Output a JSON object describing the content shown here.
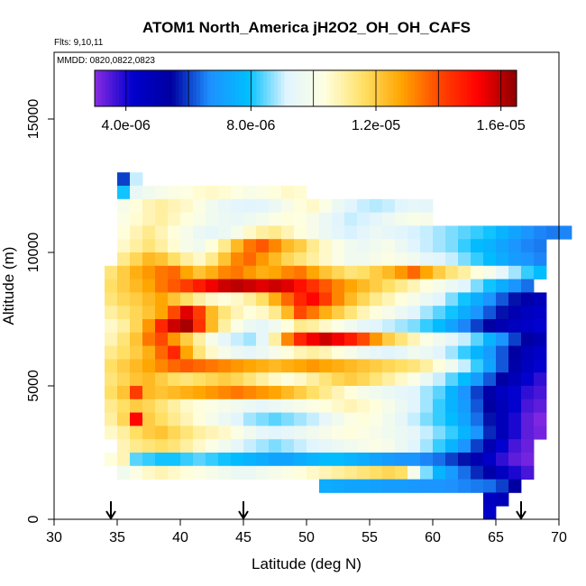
{
  "chart_data": {
    "type": "heatmap",
    "title": "ATOM1 North_America jH2O2_OH_OH_CAFS",
    "flights_label": "Flts: 9,10,11",
    "dates_label": "MMDD: 0820,0822,0823",
    "xlabel": "Latitude (deg N)",
    "ylabel": "Altitude (m)",
    "xlim": [
      30,
      70
    ],
    "ylim": [
      0,
      17500
    ],
    "x_ticks": [
      30,
      35,
      40,
      45,
      50,
      55,
      60,
      65,
      70
    ],
    "x_tick_labels": [
      "30",
      "35",
      "40",
      "45",
      "50",
      "55",
      "60",
      "65",
      "70"
    ],
    "y_ticks": [
      0,
      5000,
      10000,
      15000
    ],
    "y_tick_labels": [
      "0",
      "5000",
      "10000",
      "15000"
    ],
    "colorbar": {
      "min": 3e-06,
      "max": 1.65e-05,
      "ticks": [
        4e-06,
        8e-06,
        1.2e-05,
        1.6e-05
      ],
      "tick_labels": [
        "4.0e-06",
        "8.0e-06",
        "1.2e-05",
        "1.6e-05"
      ],
      "colors": [
        "#8a2be2",
        "#0000cd",
        "#0000a0",
        "#1e90ff",
        "#00bfff",
        "#e0f4ff",
        "#ffffe0",
        "#ffe066",
        "#ffa500",
        "#ff4500",
        "#ff0000",
        "#8b0000"
      ]
    },
    "arrows_at_latitude": [
      34.5,
      45,
      67
    ],
    "cell_size": {
      "lat": 1.0,
      "alt": 500
    },
    "rows": [
      {
        "alt": 12750,
        "lat_start": 35,
        "values": [
          6e-06,
          9e-06
        ]
      },
      {
        "alt": 12250,
        "lat_start": 35,
        "values": [
          8e-06,
          9.5e-06,
          9.8e-06,
          1e-05,
          1.02e-05,
          1.03e-05,
          1.05e-05,
          1.06e-05,
          1.05e-05,
          1.03e-05,
          1.01e-05,
          1.02e-05,
          1.04e-05,
          1.06e-05,
          1.05e-05
        ]
      },
      {
        "alt": 11750,
        "lat_start": 35,
        "values": [
          1e-05,
          1.04e-05,
          1.08e-05,
          1.1e-05,
          1.08e-05,
          1.06e-05,
          1.02e-05,
          9.8e-06,
          9.5e-06,
          9.3e-06,
          9.2e-06,
          9.3e-06,
          9.6e-06,
          1e-05,
          1.04e-05,
          1.06e-05,
          1.02e-05,
          9.6e-06,
          9.2e-06,
          9e-06,
          8.9e-06,
          9e-06,
          9.2e-06,
          9.4e-06,
          9.3e-06
        ]
      },
      {
        "alt": 11250,
        "lat_start": 35,
        "values": [
          1.02e-05,
          1.05e-05,
          1.08e-05,
          1.1e-05,
          1.07e-05,
          1.04e-05,
          1.01e-05,
          9.8e-06,
          9.6e-06,
          9.5e-06,
          9.7e-06,
          9.9e-06,
          1.02e-05,
          1.04e-05,
          1.03e-05,
          1e-05,
          9.6e-06,
          9.2e-06,
          9e-06,
          9.1e-06,
          9.3e-06,
          9.6e-06,
          9.9e-06,
          1.01e-05,
          1e-05
        ]
      },
      {
        "alt": 10750,
        "lat_start": 35,
        "values": [
          1.04e-05,
          1.08e-05,
          1.12e-05,
          1.08e-05,
          1.04e-05,
          1e-05,
          9.6e-06,
          9.4e-06,
          9.6e-06,
          1e-05,
          1.06e-05,
          1.1e-05,
          1.12e-05,
          1.08e-05,
          1.04e-05,
          1e-05,
          9.6e-06,
          9.3e-06,
          9.1e-06,
          9.3e-06,
          9.6e-06,
          9.4e-06,
          9.2e-06,
          9.1e-06,
          9e-06,
          8.8e-06,
          8.6e-06,
          8.4e-06,
          8.2e-06,
          8e-06,
          7.6e-06,
          7.2e-06,
          6.8e-06,
          6.6e-06,
          6.5e-06,
          6.6e-06
        ]
      },
      {
        "alt": 10250,
        "lat_start": 35,
        "values": [
          1.06e-05,
          1.1e-05,
          1.14e-05,
          1.1e-05,
          1.05e-05,
          1e-05,
          9.8e-06,
          1.04e-05,
          1.12e-05,
          1.24e-05,
          1.34e-05,
          1.38e-05,
          1.32e-05,
          1.24e-05,
          1.2e-05,
          1.12e-05,
          1.06e-05,
          1.02e-05,
          9.8e-06,
          9.6e-06,
          9.8e-06,
          1e-05,
          9.6e-06,
          9.2e-06,
          9e-06,
          8.8e-06,
          8.6e-06,
          8.2e-06,
          7.8e-06,
          7.6e-06,
          7.2e-06,
          6.8e-06,
          6.6e-06,
          6.5e-06
        ]
      },
      {
        "alt": 9750,
        "lat_start": 35,
        "values": [
          1.12e-05,
          1.18e-05,
          1.24e-05,
          1.22e-05,
          1.16e-05,
          1.1e-05,
          1.06e-05,
          1.12e-05,
          1.22e-05,
          1.32e-05,
          1.36e-05,
          1.3e-05,
          1.24e-05,
          1.18e-05,
          1.14e-05,
          1.1e-05,
          1.06e-05,
          1.02e-05,
          9.8e-06,
          9.8e-06,
          1e-05,
          1.02e-05,
          1e-05,
          9.8e-06,
          9.4e-06,
          9.2e-06,
          9e-06,
          8.6e-06,
          8.2e-06,
          7.8e-06,
          7.4e-06,
          7e-06,
          6.8e-06,
          6.6e-06
        ]
      },
      {
        "alt": 9250,
        "lat_start": 34,
        "values": [
          1.14e-05,
          1.2e-05,
          1.26e-05,
          1.3e-05,
          1.34e-05,
          1.36e-05,
          1.28e-05,
          1.22e-05,
          1.26e-05,
          1.32e-05,
          1.34e-05,
          1.3e-05,
          1.26e-05,
          1.28e-05,
          1.32e-05,
          1.34e-05,
          1.28e-05,
          1.22e-05,
          1.18e-05,
          1.14e-05,
          1.16e-05,
          1.2e-05,
          1.24e-05,
          1.3e-05,
          1.36e-05,
          1.28e-05,
          1.2e-05,
          1.14e-05,
          1.1e-05,
          1.04e-05,
          1e-05,
          9.4e-06,
          8.8e-06,
          8.2e-06,
          7.8e-06
        ]
      },
      {
        "alt": 8750,
        "lat_start": 34,
        "values": [
          1.16e-05,
          1.2e-05,
          1.24e-05,
          1.28e-05,
          1.34e-05,
          1.38e-05,
          1.42e-05,
          1.48e-05,
          1.54e-05,
          1.58e-05,
          1.6e-05,
          1.58e-05,
          1.56e-05,
          1.58e-05,
          1.56e-05,
          1.5e-05,
          1.44e-05,
          1.38e-05,
          1.32e-05,
          1.28e-05,
          1.24e-05,
          1.2e-05,
          1.16e-05,
          1.12e-05,
          1.08e-05,
          1.04e-05,
          1e-05,
          9.6e-06,
          9.2e-06,
          8.6e-06,
          8e-06,
          7.4e-06,
          6.8e-06,
          6.4e-06
        ]
      },
      {
        "alt": 8250,
        "lat_start": 34,
        "values": [
          1.14e-05,
          1.18e-05,
          1.2e-05,
          1.24e-05,
          1.28e-05,
          1.22e-05,
          1.16e-05,
          1.1e-05,
          1.06e-05,
          1.04e-05,
          1.06e-05,
          1.1e-05,
          1.16e-05,
          1.26e-05,
          1.36e-05,
          1.46e-05,
          1.52e-05,
          1.42e-05,
          1.32e-05,
          1.24e-05,
          1.18e-05,
          1.12e-05,
          1.08e-05,
          1.04e-05,
          1e-05,
          9.6e-06,
          9.2e-06,
          8.6e-06,
          8e-06,
          7.4e-06,
          6.8e-06,
          6.2e-06,
          5.6e-06,
          5.2e-06,
          4.8e-06
        ]
      },
      {
        "alt": 7750,
        "lat_start": 34,
        "values": [
          1.1e-05,
          1.14e-05,
          1.18e-05,
          1.22e-05,
          1.28e-05,
          1.4e-05,
          1.56e-05,
          1.42e-05,
          1.24e-05,
          1.14e-05,
          1.08e-05,
          1.04e-05,
          1.06e-05,
          1.12e-05,
          1.24e-05,
          1.4e-05,
          1.34e-05,
          1.26e-05,
          1.2e-05,
          1.14e-05,
          1.08e-05,
          1.04e-05,
          1e-05,
          9.6e-06,
          9.2e-06,
          8.8e-06,
          8.4e-06,
          8e-06,
          7.4e-06,
          6.8e-06,
          6.2e-06,
          5.6e-06,
          5e-06,
          4.6e-06,
          4.4e-06
        ]
      },
      {
        "alt": 7250,
        "lat_start": 34,
        "values": [
          1.06e-05,
          1.1e-05,
          1.18e-05,
          1.3e-05,
          1.46e-05,
          1.58e-05,
          1.62e-05,
          1.44e-05,
          1.24e-05,
          1.1e-05,
          1.02e-05,
          9.6e-06,
          9.4e-06,
          9.8e-06,
          1.04e-05,
          1.12e-05,
          1.1e-05,
          1.06e-05,
          1.02e-05,
          9.8e-06,
          9.4e-06,
          9.2e-06,
          9e-06,
          8.8e-06,
          8.6e-06,
          8.2e-06,
          7.8e-06,
          7.2e-06,
          6.6e-06,
          6e-06,
          5.4e-06,
          5e-06,
          4.6e-06,
          4.4e-06,
          4.2e-06
        ]
      },
      {
        "alt": 6750,
        "lat_start": 34,
        "values": [
          1.08e-05,
          1.14e-05,
          1.22e-05,
          1.34e-05,
          1.4e-05,
          1.3e-05,
          1.2e-05,
          1.1e-05,
          1e-05,
          9.4e-06,
          9e-06,
          8.8e-06,
          9.4e-06,
          1.1e-05,
          1.32e-05,
          1.46e-05,
          1.54e-05,
          1.58e-05,
          1.54e-05,
          1.48e-05,
          1.4e-05,
          1.3e-05,
          1.2e-05,
          1.14e-05,
          1.08e-05,
          1.02e-05,
          9.8e-06,
          9.4e-06,
          9e-06,
          8.4e-06,
          7.6e-06,
          6.8e-06,
          6e-06,
          5.4e-06,
          5e-06
        ]
      },
      {
        "alt": 6250,
        "lat_start": 34,
        "values": [
          1.12e-05,
          1.16e-05,
          1.2e-05,
          1.26e-05,
          1.36e-05,
          1.46e-05,
          1.28e-05,
          1.14e-05,
          1.06e-05,
          1e-05,
          9.6e-06,
          9.4e-06,
          9.6e-06,
          1e-05,
          1.04e-05,
          1.08e-05,
          1.1e-05,
          1.08e-05,
          1.04e-05,
          1e-05,
          9.6e-06,
          9.4e-06,
          9.2e-06,
          9.4e-06,
          9.8e-06,
          9.6e-06,
          9.2e-06,
          8.8e-06,
          8.2e-06,
          7.6e-06,
          7e-06,
          6.2e-06,
          5.4e-06,
          4.8e-06,
          4.4e-06
        ]
      },
      {
        "alt": 5750,
        "lat_start": 34,
        "values": [
          1.16e-05,
          1.2e-05,
          1.24e-05,
          1.28e-05,
          1.32e-05,
          1.36e-05,
          1.38e-05,
          1.36e-05,
          1.34e-05,
          1.32e-05,
          1.3e-05,
          1.28e-05,
          1.26e-05,
          1.24e-05,
          1.26e-05,
          1.28e-05,
          1.3e-05,
          1.28e-05,
          1.26e-05,
          1.24e-05,
          1.22e-05,
          1.2e-05,
          1.18e-05,
          1.16e-05,
          1.14e-05,
          1.1e-05,
          1.04e-05,
          9.8e-06,
          9e-06,
          8.2e-06,
          7.2e-06,
          6.2e-06,
          5.2e-06,
          4.6e-06,
          4.2e-06
        ]
      },
      {
        "alt": 5250,
        "lat_start": 34,
        "values": [
          1.14e-05,
          1.18e-05,
          1.22e-05,
          1.24e-05,
          1.2e-05,
          1.16e-05,
          1.14e-05,
          1.16e-05,
          1.18e-05,
          1.2e-05,
          1.18e-05,
          1.14e-05,
          1.1e-05,
          1.06e-05,
          1.04e-05,
          1.06e-05,
          1.1e-05,
          1.14e-05,
          1.18e-05,
          1.2e-05,
          1.18e-05,
          1.14e-05,
          1.1e-05,
          1.06e-05,
          1.02e-05,
          9.6e-06,
          9e-06,
          8.4e-06,
          7.8e-06,
          7e-06,
          6.2e-06,
          5.4e-06,
          4.8e-06,
          4.2e-06,
          3.8e-06
        ]
      },
      {
        "alt": 4750,
        "lat_start": 34,
        "values": [
          1.16e-05,
          1.22e-05,
          1.42e-05,
          1.24e-05,
          1.22e-05,
          1.24e-05,
          1.26e-05,
          1.28e-05,
          1.3e-05,
          1.32e-05,
          1.34e-05,
          1.32e-05,
          1.3e-05,
          1.28e-05,
          1.24e-05,
          1.2e-05,
          1.16e-05,
          1.12e-05,
          1.08e-05,
          1.04e-05,
          1e-05,
          9.8e-06,
          9.6e-06,
          9.4e-06,
          9.2e-06,
          8.8e-06,
          8.4e-06,
          7.6e-06,
          6.8e-06,
          6e-06,
          5.2e-06,
          4.6e-06,
          4.2e-06,
          3.8e-06,
          3.6e-06
        ]
      },
      {
        "alt": 4250,
        "lat_start": 34,
        "values": [
          1.12e-05,
          1.16e-05,
          1.2e-05,
          1.18e-05,
          1.14e-05,
          1.1e-05,
          1.06e-05,
          1.04e-05,
          1.02e-05,
          1e-05,
          9.8e-06,
          9.6e-06,
          9.4e-06,
          9.6e-06,
          9.8e-06,
          1e-05,
          1.02e-05,
          1.04e-05,
          1.06e-05,
          1.08e-05,
          1.06e-05,
          1.04e-05,
          1e-05,
          9.6e-06,
          9.2e-06,
          8.8e-06,
          8.2e-06,
          7.6e-06,
          7e-06,
          6.2e-06,
          5.4e-06,
          4.8e-06,
          4.2e-06,
          3.6e-06,
          3.4e-06
        ]
      },
      {
        "alt": 3750,
        "lat_start": 34,
        "values": [
          1.1e-05,
          1.18e-05,
          1.52e-05,
          1.2e-05,
          1.16e-05,
          1.12e-05,
          1.08e-05,
          1.04e-05,
          1e-05,
          9.6e-06,
          9.2e-06,
          8.8e-06,
          8.6e-06,
          8.4e-06,
          8.6e-06,
          8.8e-06,
          9e-06,
          9.4e-06,
          9.8e-06,
          1.02e-05,
          1.04e-05,
          1.02e-05,
          9.8e-06,
          9.4e-06,
          9e-06,
          8.6e-06,
          8.2e-06,
          7.8e-06,
          7.2e-06,
          6.4e-06,
          5.6e-06,
          4.8e-06,
          4e-06,
          3.4e-06,
          3.1e-06
        ]
      },
      {
        "alt": 3250,
        "lat_start": 34,
        "values": [
          1.06e-05,
          1.1e-05,
          1.16e-05,
          1.2e-05,
          1.22e-05,
          1.18e-05,
          1.14e-05,
          1.1e-05,
          1.08e-05,
          1.06e-05,
          1.02e-05,
          9.8e-06,
          9.4e-06,
          9.2e-06,
          9.4e-06,
          9.6e-06,
          9.8e-06,
          1e-05,
          1.02e-05,
          1.04e-05,
          1.02e-05,
          1e-05,
          9.8e-06,
          9.6e-06,
          9.4e-06,
          9e-06,
          8.6e-06,
          8.2e-06,
          7.6e-06,
          6.8e-06,
          5.8e-06,
          4.8e-06,
          4e-06,
          3.4e-06,
          3.2e-06
        ]
      },
      {
        "alt": 2750,
        "lat_start": 35,
        "values": [
          1.08e-05,
          1.12e-05,
          1.14e-05,
          1.16e-05,
          1.14e-05,
          1.1e-05,
          1.06e-05,
          1.02e-05,
          9.8e-06,
          9.4e-06,
          9e-06,
          8.8e-06,
          8.6e-06,
          8.8e-06,
          9e-06,
          9.2e-06,
          9.4e-06,
          9.6e-06,
          9.8e-06,
          1e-05,
          1.02e-05,
          1e-05,
          9.6e-06,
          9.2e-06,
          8.8e-06,
          8.2e-06,
          7.6e-06,
          6.8e-06,
          6e-06,
          5e-06,
          4.2e-06,
          3.6e-06,
          3.3e-06
        ]
      },
      {
        "alt": 2250,
        "lat_start": 34,
        "values": [
          1.04e-05,
          1.08e-05,
          8.4e-06,
          8.2e-06,
          8e-06,
          8e-06,
          8.2e-06,
          8.4e-06,
          8.2e-06,
          8e-06,
          7.8e-06,
          7.6e-06,
          7.4e-06,
          7.2e-06,
          7.2e-06,
          7.4e-06,
          7.6e-06,
          7.8e-06,
          7.8e-06,
          7.6e-06,
          7.4e-06,
          7.2e-06,
          7e-06,
          6.8e-06,
          6.8e-06,
          6.6e-06,
          6.4e-06,
          6e-06,
          5.6e-06,
          5e-06,
          4.4e-06,
          3.8e-06,
          3.4e-06,
          3.2e-06
        ]
      },
      {
        "alt": 1750,
        "lat_start": 35,
        "values": [
          9.8e-06,
          1.02e-05,
          1.06e-05,
          1.08e-05,
          1.06e-05,
          1.04e-05,
          1.02e-05,
          1e-05,
          9.8e-06,
          9.6e-06,
          9.6e-06,
          9.8e-06,
          1e-05,
          1.02e-05,
          1.04e-05,
          1.06e-05,
          1.08e-05,
          1.1e-05,
          1.12e-05,
          1.14e-05,
          1.16e-05,
          1.18e-05,
          1.16e-05,
          1e-05,
          8.6e-06,
          7.6e-06,
          7e-06,
          6.4e-06,
          5.8e-06,
          5.2e-06,
          4.6e-06,
          4e-06,
          3.6e-06
        ]
      },
      {
        "alt": 1250,
        "lat_start": 51,
        "values": [
          7.4e-06,
          7.3e-06,
          7.2e-06,
          7.2e-06,
          7.1e-06,
          7e-06,
          7e-06,
          6.9e-06,
          6.8e-06,
          6.8e-06,
          6.7e-06,
          6.6e-06,
          6.5e-06,
          6.4e-06,
          6e-06,
          5.4e-06
        ]
      },
      {
        "alt": 750,
        "lat_start": 64,
        "values": [
          4.6e-06,
          4.8e-06
        ]
      },
      {
        "alt": 250,
        "lat_start": 64,
        "values": [
          4.4e-06
        ]
      }
    ]
  }
}
